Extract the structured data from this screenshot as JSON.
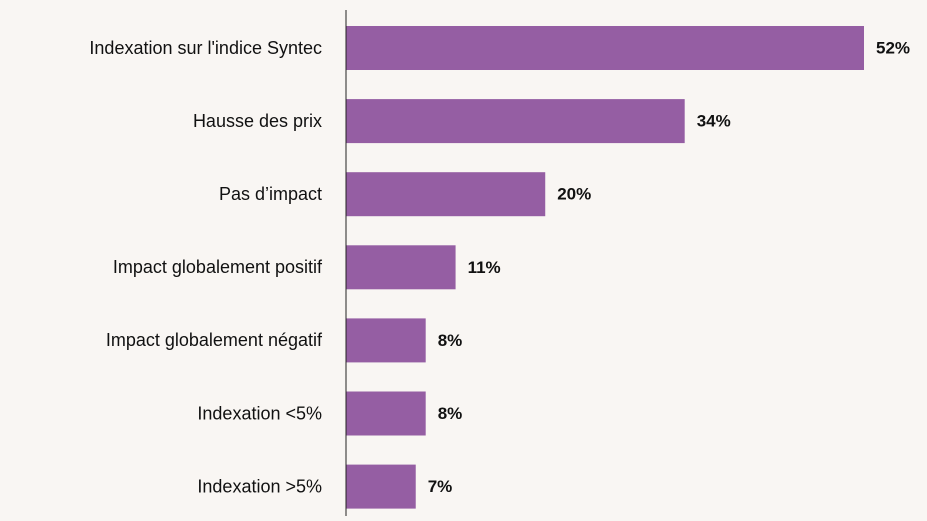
{
  "chart_data": {
    "type": "bar",
    "orientation": "horizontal",
    "categories": [
      "Indexation sur l'indice Syntec",
      "Hausse des prix",
      "Pas d’impact",
      "Impact globalement positif",
      "Impact globalement négatif",
      "Indexation <5%",
      "Indexation >5%"
    ],
    "values": [
      52,
      34,
      20,
      11,
      8,
      8,
      7
    ],
    "value_labels": [
      "52%",
      "34%",
      "20%",
      "11%",
      "8%",
      "8%",
      "7%"
    ],
    "color": "#955ea3"
  }
}
